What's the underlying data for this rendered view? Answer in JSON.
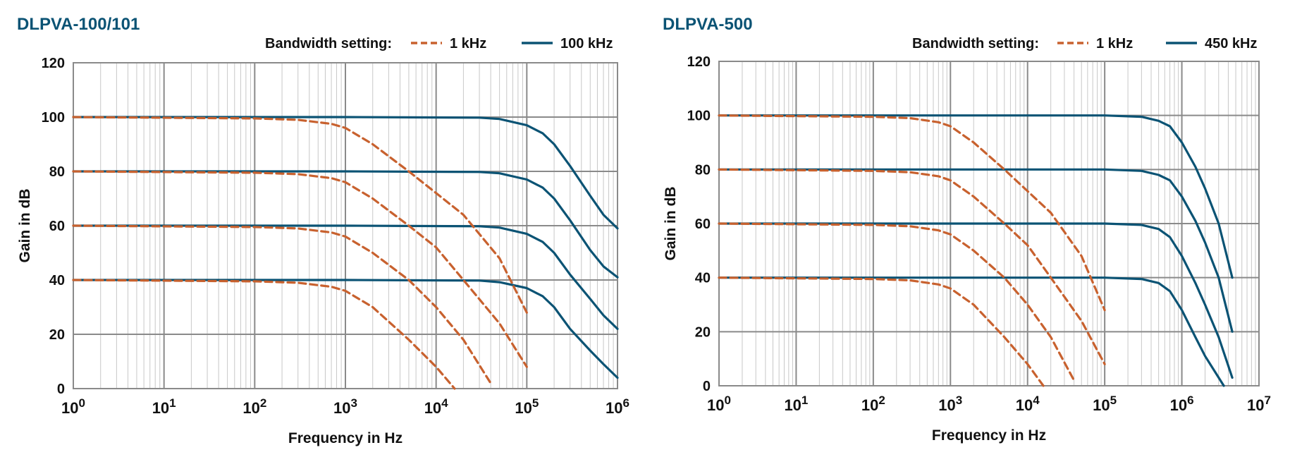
{
  "colors": {
    "bw_low": "#C8612E",
    "bw_high": "#0B5374",
    "title": "#0B5374",
    "grid_major": "#8A8A8A",
    "grid_minor": "#C8C8C8",
    "text": "#111111"
  },
  "chart_data": [
    {
      "type": "line",
      "title": "DLPVA-100/101",
      "xlabel": "Frequency in Hz",
      "ylabel": "Gain in dB",
      "x_scale": "log",
      "xlim": [
        1,
        1000000
      ],
      "ylim": [
        0,
        120
      ],
      "x_tick_labels": [
        {
          "base": "10",
          "exp": "0"
        },
        {
          "base": "10",
          "exp": "1"
        },
        {
          "base": "10",
          "exp": "2"
        },
        {
          "base": "10",
          "exp": "3"
        },
        {
          "base": "10",
          "exp": "4"
        },
        {
          "base": "10",
          "exp": "5"
        },
        {
          "base": "10",
          "exp": "6"
        }
      ],
      "y_ticks": [
        "0",
        "20",
        "40",
        "60",
        "80",
        "100",
        "120"
      ],
      "grid": true,
      "legend": {
        "title": "Bandwidth setting:",
        "placement": "top-right",
        "entries": [
          {
            "label": "1 kHz",
            "style": "dashed",
            "color_key": "bw_low"
          },
          {
            "label": "100 kHz",
            "style": "solid",
            "color_key": "bw_high"
          }
        ]
      },
      "series": [
        {
          "legend_entry": "100 kHz",
          "gain": 100,
          "style": "solid",
          "points": [
            [
              1,
              100
            ],
            [
              1000,
              100
            ],
            [
              30000,
              99.8
            ],
            [
              50000,
              99.3
            ],
            [
              100000,
              97
            ],
            [
              150000,
              94
            ],
            [
              200000,
              90
            ],
            [
              300000,
              82
            ],
            [
              500000,
              71
            ],
            [
              700000,
              64
            ],
            [
              1000000,
              59
            ]
          ]
        },
        {
          "legend_entry": "100 kHz",
          "gain": 80,
          "style": "solid",
          "points": [
            [
              1,
              80
            ],
            [
              1000,
              80
            ],
            [
              30000,
              79.8
            ],
            [
              50000,
              79.3
            ],
            [
              100000,
              77
            ],
            [
              150000,
              74
            ],
            [
              200000,
              70
            ],
            [
              300000,
              62
            ],
            [
              500000,
              51
            ],
            [
              700000,
              45
            ],
            [
              1000000,
              41
            ]
          ]
        },
        {
          "legend_entry": "100 kHz",
          "gain": 60,
          "style": "solid",
          "points": [
            [
              1,
              60
            ],
            [
              1000,
              60
            ],
            [
              30000,
              59.8
            ],
            [
              50000,
              59.3
            ],
            [
              100000,
              57
            ],
            [
              150000,
              54
            ],
            [
              200000,
              50
            ],
            [
              300000,
              42
            ],
            [
              500000,
              33
            ],
            [
              700000,
              27
            ],
            [
              1000000,
              22
            ]
          ]
        },
        {
          "legend_entry": "100 kHz",
          "gain": 40,
          "style": "solid",
          "points": [
            [
              1,
              40
            ],
            [
              1000,
              40
            ],
            [
              30000,
              39.8
            ],
            [
              50000,
              39.2
            ],
            [
              100000,
              37
            ],
            [
              150000,
              34
            ],
            [
              200000,
              30
            ],
            [
              300000,
              22
            ],
            [
              500000,
              14
            ],
            [
              700000,
              9
            ],
            [
              1000000,
              4
            ]
          ]
        },
        {
          "legend_entry": "1 kHz",
          "gain": 100,
          "style": "dashed",
          "points": [
            [
              1,
              100
            ],
            [
              100,
              99.5
            ],
            [
              300,
              99
            ],
            [
              700,
              97.5
            ],
            [
              1000,
              96
            ],
            [
              2000,
              90
            ],
            [
              5000,
              80
            ],
            [
              10000,
              72
            ],
            [
              20000,
              64
            ],
            [
              50000,
              48
            ],
            [
              100000,
              28
            ]
          ]
        },
        {
          "legend_entry": "1 kHz",
          "gain": 80,
          "style": "dashed",
          "points": [
            [
              1,
              80
            ],
            [
              100,
              79.5
            ],
            [
              300,
              79
            ],
            [
              700,
              77.5
            ],
            [
              1000,
              76
            ],
            [
              2000,
              70
            ],
            [
              5000,
              60
            ],
            [
              10000,
              52
            ],
            [
              20000,
              40
            ],
            [
              50000,
              24
            ],
            [
              100000,
              8
            ]
          ]
        },
        {
          "legend_entry": "1 kHz",
          "gain": 60,
          "style": "dashed",
          "points": [
            [
              1,
              60
            ],
            [
              100,
              59.5
            ],
            [
              300,
              59
            ],
            [
              700,
              57.5
            ],
            [
              1000,
              56
            ],
            [
              2000,
              50
            ],
            [
              5000,
              40
            ],
            [
              10000,
              30
            ],
            [
              20000,
              18
            ],
            [
              40000,
              2
            ]
          ]
        },
        {
          "legend_entry": "1 kHz",
          "gain": 40,
          "style": "dashed",
          "points": [
            [
              1,
              40
            ],
            [
              100,
              39.5
            ],
            [
              300,
              39
            ],
            [
              700,
              37.5
            ],
            [
              1000,
              36
            ],
            [
              2000,
              30
            ],
            [
              5000,
              18
            ],
            [
              10000,
              8
            ],
            [
              16000,
              0
            ]
          ]
        }
      ]
    },
    {
      "type": "line",
      "title": "DLPVA-500",
      "xlabel": "Frequency in Hz",
      "ylabel": "Gain in dB",
      "x_scale": "log",
      "xlim": [
        1,
        10000000
      ],
      "ylim": [
        0,
        120
      ],
      "x_tick_labels": [
        {
          "base": "10",
          "exp": "0"
        },
        {
          "base": "10",
          "exp": "1"
        },
        {
          "base": "10",
          "exp": "2"
        },
        {
          "base": "10",
          "exp": "3"
        },
        {
          "base": "10",
          "exp": "4"
        },
        {
          "base": "10",
          "exp": "5"
        },
        {
          "base": "10",
          "exp": "6"
        },
        {
          "base": "10",
          "exp": "7"
        }
      ],
      "y_ticks": [
        "0",
        "20",
        "40",
        "60",
        "80",
        "100",
        "120"
      ],
      "grid": true,
      "legend": {
        "title": "Bandwidth setting:",
        "placement": "top-right",
        "entries": [
          {
            "label": "1 kHz",
            "style": "dashed",
            "color_key": "bw_low"
          },
          {
            "label": "450 kHz",
            "style": "solid",
            "color_key": "bw_high"
          }
        ]
      },
      "series": [
        {
          "legend_entry": "450 kHz",
          "gain": 100,
          "style": "solid",
          "points": [
            [
              1,
              100
            ],
            [
              100000,
              100
            ],
            [
              300000,
              99.5
            ],
            [
              500000,
              98
            ],
            [
              700000,
              96
            ],
            [
              1000000,
              90
            ],
            [
              1500000,
              81
            ],
            [
              2000000,
              73
            ],
            [
              3000000,
              60
            ],
            [
              4500000,
              40
            ]
          ]
        },
        {
          "legend_entry": "450 kHz",
          "gain": 80,
          "style": "solid",
          "points": [
            [
              1,
              80
            ],
            [
              100000,
              80
            ],
            [
              300000,
              79.5
            ],
            [
              500000,
              78
            ],
            [
              700000,
              76
            ],
            [
              1000000,
              70
            ],
            [
              1500000,
              61
            ],
            [
              2000000,
              53
            ],
            [
              3000000,
              40
            ],
            [
              4500000,
              20
            ]
          ]
        },
        {
          "legend_entry": "450 kHz",
          "gain": 60,
          "style": "solid",
          "points": [
            [
              1,
              60
            ],
            [
              100000,
              60
            ],
            [
              300000,
              59.5
            ],
            [
              500000,
              58
            ],
            [
              700000,
              55
            ],
            [
              1000000,
              48
            ],
            [
              1500000,
              38
            ],
            [
              2000000,
              30
            ],
            [
              3000000,
              18
            ],
            [
              4500000,
              3
            ]
          ]
        },
        {
          "legend_entry": "450 kHz",
          "gain": 40,
          "style": "solid",
          "points": [
            [
              1,
              40
            ],
            [
              100000,
              40
            ],
            [
              300000,
              39.5
            ],
            [
              500000,
              38
            ],
            [
              700000,
              35
            ],
            [
              1000000,
              28
            ],
            [
              1500000,
              18
            ],
            [
              2000000,
              11
            ],
            [
              3500000,
              0
            ]
          ]
        },
        {
          "legend_entry": "1 kHz",
          "gain": 100,
          "style": "dashed",
          "points": [
            [
              1,
              100
            ],
            [
              100,
              99.5
            ],
            [
              300,
              99
            ],
            [
              700,
              97.5
            ],
            [
              1000,
              96
            ],
            [
              2000,
              90
            ],
            [
              5000,
              80
            ],
            [
              10000,
              72
            ],
            [
              20000,
              64
            ],
            [
              50000,
              48
            ],
            [
              100000,
              28
            ]
          ]
        },
        {
          "legend_entry": "1 kHz",
          "gain": 80,
          "style": "dashed",
          "points": [
            [
              1,
              80
            ],
            [
              100,
              79.5
            ],
            [
              300,
              79
            ],
            [
              700,
              77.5
            ],
            [
              1000,
              76
            ],
            [
              2000,
              70
            ],
            [
              5000,
              60
            ],
            [
              10000,
              52
            ],
            [
              20000,
              40
            ],
            [
              50000,
              24
            ],
            [
              100000,
              8
            ]
          ]
        },
        {
          "legend_entry": "1 kHz",
          "gain": 60,
          "style": "dashed",
          "points": [
            [
              1,
              60
            ],
            [
              100,
              59.5
            ],
            [
              300,
              59
            ],
            [
              700,
              57.5
            ],
            [
              1000,
              56
            ],
            [
              2000,
              50
            ],
            [
              5000,
              40
            ],
            [
              10000,
              30
            ],
            [
              20000,
              18
            ],
            [
              40000,
              2
            ]
          ]
        },
        {
          "legend_entry": "1 kHz",
          "gain": 40,
          "style": "dashed",
          "points": [
            [
              1,
              40
            ],
            [
              100,
              39.5
            ],
            [
              300,
              39
            ],
            [
              700,
              37.5
            ],
            [
              1000,
              36
            ],
            [
              2000,
              30
            ],
            [
              5000,
              18
            ],
            [
              10000,
              8
            ],
            [
              16000,
              0
            ]
          ]
        }
      ]
    }
  ]
}
